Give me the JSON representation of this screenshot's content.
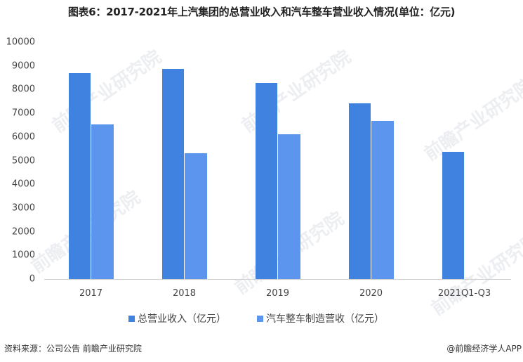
{
  "title": "图表6：2017-2021年上汽集团的总营业收入和汽车整车营业收入情况(单位：亿元)",
  "chart_data": {
    "type": "bar",
    "title": "图表6：2017-2021年上汽集团的总营业收入和汽车整车营业收入情况(单位：亿元)",
    "categories": [
      "2017",
      "2018",
      "2019",
      "2020",
      "2021Q1-Q3"
    ],
    "series": [
      {
        "name": "总营业收入（亿元）",
        "color": "#3f82e0",
        "values": [
          8706,
          8876,
          8265,
          7421,
          5370
        ]
      },
      {
        "name": "汽车整车制造营收（亿元）",
        "color": "#5b95ed",
        "values": [
          6540,
          5300,
          6120,
          6670,
          null
        ]
      }
    ],
    "xlabel": "",
    "ylabel": "",
    "ylim": [
      0,
      10000
    ],
    "yticks": [
      0,
      1000,
      2000,
      3000,
      4000,
      5000,
      6000,
      7000,
      8000,
      9000,
      10000
    ],
    "grid": false,
    "legend_position": "bottom"
  },
  "yticks_labels": [
    "10000",
    "9000",
    "8000",
    "7000",
    "6000",
    "5000",
    "4000",
    "3000",
    "2000",
    "1000",
    "0"
  ],
  "legend": {
    "item1": "总营业收入（亿元）",
    "item2": "汽车整车制造营收（亿元）"
  },
  "footer": {
    "source": "资料来源：公司公告 前瞻产业研究院",
    "credit": "@前瞻经济学人APP"
  },
  "watermark": "前瞻产业研究院",
  "colors": {
    "series1": "#3f82e0",
    "series2": "#5b95ed"
  }
}
